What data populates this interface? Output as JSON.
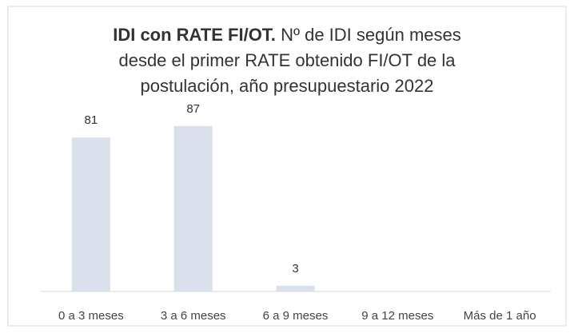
{
  "chart_data": {
    "type": "bar",
    "title_bold": "IDI con RATE FI/OT.",
    "title_lines": [
      "Nº de IDI según meses",
      "desde el primer RATE obtenido FI/OT de la",
      "postulación, año presupuestario 2022"
    ],
    "categories": [
      "0 a 3 meses",
      "3 a 6 meses",
      "6 a 9 meses",
      "9 a 12 meses",
      "Más de 1 año"
    ],
    "values": [
      81,
      87,
      3,
      null,
      null
    ],
    "color": "#d9dfeb",
    "ylim": [
      0,
      100
    ]
  }
}
